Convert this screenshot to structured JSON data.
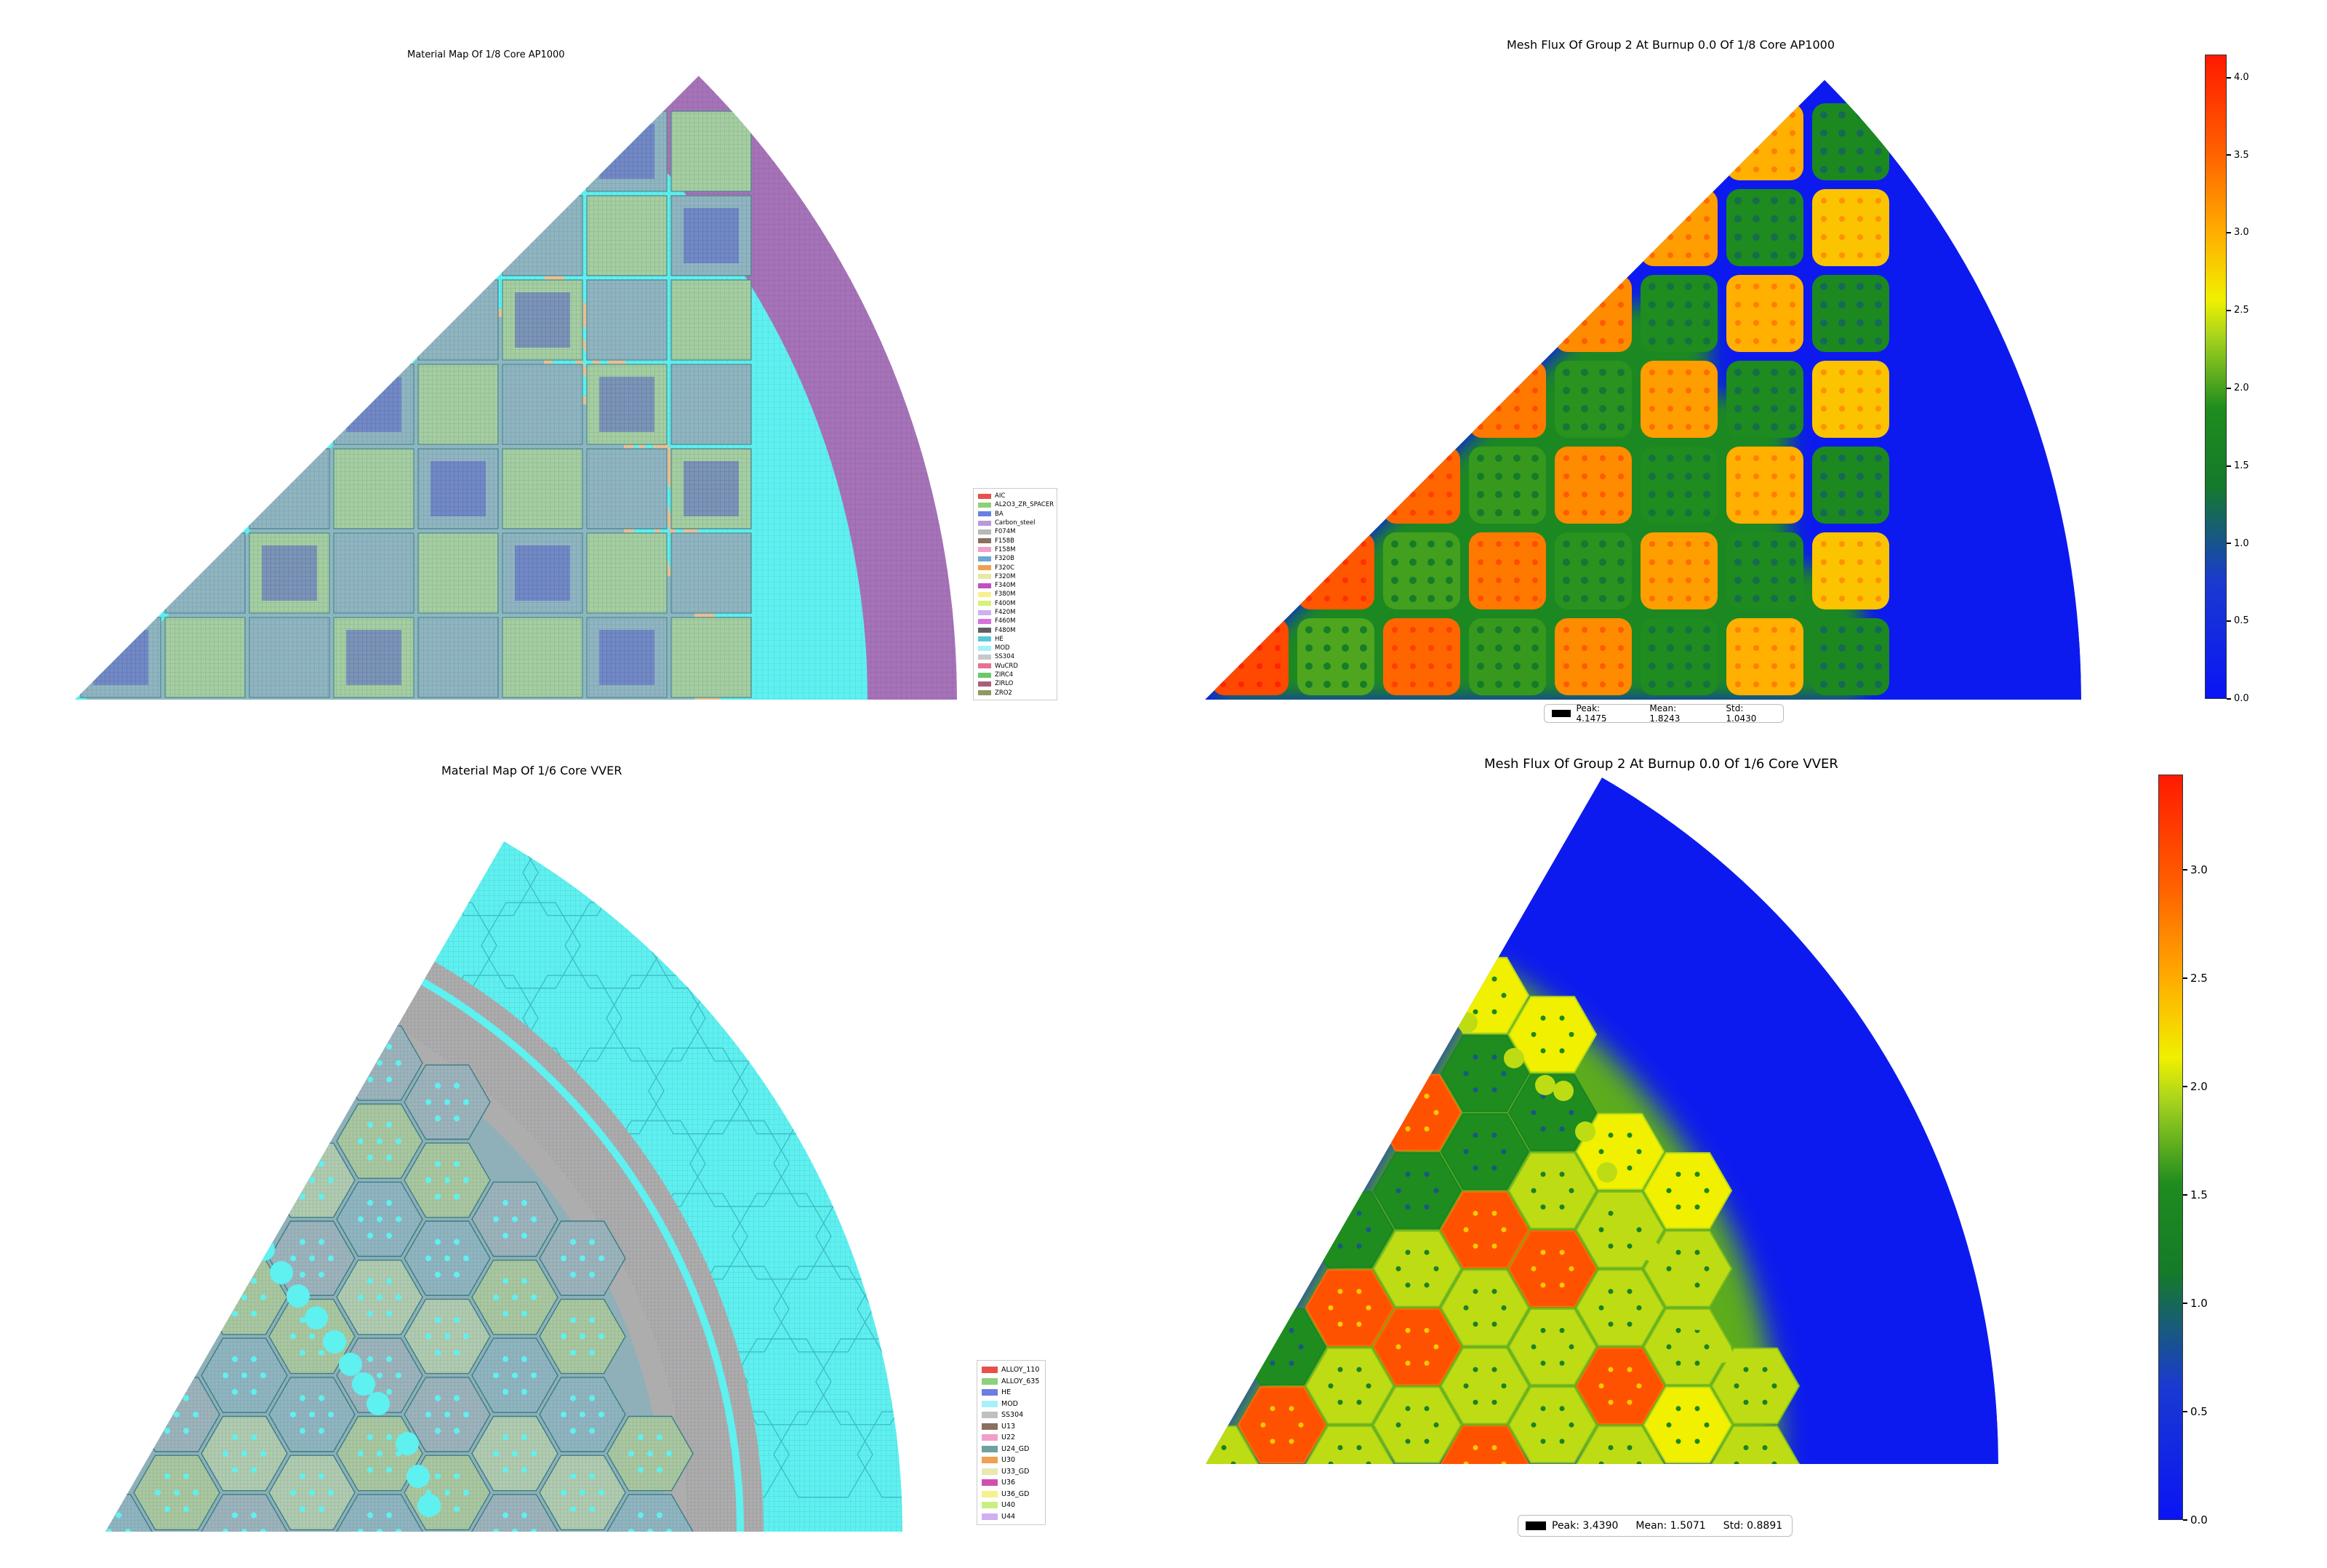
{
  "chart_data": [
    {
      "type": "heatmap",
      "title": "Material Map Of 1/8 Core AP1000",
      "legend_position": "right",
      "legend": [
        "AIC",
        "AL2O3_ZR_SPACER",
        "BA",
        "Carbon_steel",
        "F074M",
        "F158B",
        "F158M",
        "F320B",
        "F320C",
        "F320M",
        "F340M",
        "F380M",
        "F400M",
        "F420M",
        "F460M",
        "F480M",
        "HE",
        "MOD",
        "SS304",
        "WuCRD",
        "ZIRC4",
        "ZIRLO",
        "ZRO2"
      ],
      "legend_colors": [
        "#e8504a",
        "#8ed07a",
        "#6a7fe0",
        "#b99ad8",
        "#b8b8b8",
        "#8a7060",
        "#f0a0c8",
        "#6aa8d8",
        "#f0a050",
        "#e8e8a0",
        "#c050c0",
        "#f8f090",
        "#d8f078",
        "#d0b0f0",
        "#d870e0",
        "#606060",
        "#58c8d8",
        "#a8f0f8",
        "#c8c8c8",
        "#e87090",
        "#6ac86a",
        "#a86078",
        "#909860"
      ]
    },
    {
      "type": "heatmap",
      "title": "Mesh Flux Of Group 2 At Burnup 0.0 Of 1/8 Core AP1000",
      "colorbar": {
        "min": 0.0,
        "max": 4.1475,
        "ticks": [
          "0.0",
          "0.5",
          "1.0",
          "1.5",
          "2.0",
          "2.5",
          "3.0",
          "3.5",
          "4.0"
        ],
        "tick_values": [
          0,
          0.5,
          1.0,
          1.5,
          2.0,
          2.5,
          3.0,
          3.5,
          4.0
        ]
      },
      "stats": {
        "peak_label": "Peak: 4.1475",
        "mean_label": "Mean: 1.8243",
        "std_label": "Std: 1.0430",
        "peak": 4.1475,
        "mean": 1.8243,
        "std": 1.043
      }
    },
    {
      "type": "heatmap",
      "title": "Material Map Of 1/6 Core VVER",
      "legend_position": "right",
      "legend": [
        "ALLOY_110",
        "ALLOY_635",
        "HE",
        "MOD",
        "SS304",
        "U13",
        "U22",
        "U24_GD",
        "U30",
        "U33_GD",
        "U36",
        "U36_GD",
        "U40",
        "U44"
      ],
      "legend_colors": [
        "#e8504a",
        "#8ed07a",
        "#6a7fe0",
        "#a8f0f8",
        "#c0c0c0",
        "#8a7060",
        "#f0a0c8",
        "#70a0a0",
        "#f0a050",
        "#e8e8b0",
        "#d050b0",
        "#f8f090",
        "#c8f080",
        "#d0b0f0"
      ]
    },
    {
      "type": "heatmap",
      "title": "Mesh Flux Of Group 2 At Burnup 0.0 Of 1/6 Core VVER",
      "colorbar": {
        "min": 0.0,
        "max": 3.439,
        "ticks": [
          "0.0",
          "0.5",
          "1.0",
          "1.5",
          "2.0",
          "2.5",
          "3.0"
        ],
        "tick_values": [
          0,
          0.5,
          1.0,
          1.5,
          2.0,
          2.5,
          3.0
        ]
      },
      "stats": {
        "peak_label": "Peak: 3.4390",
        "mean_label": "Mean: 1.5071",
        "std_label": "Std: 0.8891",
        "peak": 3.439,
        "mean": 1.5071,
        "std": 0.8891
      }
    }
  ],
  "colors": {
    "moderator": "#5ff0f0",
    "reflector_purple": "#a673b8",
    "baffle_tan": "#e6bf94",
    "vver_steel": "#adadad",
    "assembly_grey": "#8fb6c0",
    "assembly_green": "#a4cfa0",
    "flux_low": "#1010f0",
    "flux_mid": "#1a8a1a",
    "flux_high": "#ff2000"
  }
}
